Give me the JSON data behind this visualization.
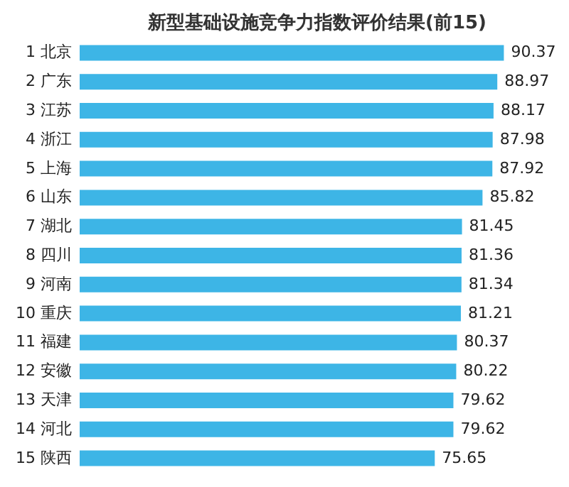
{
  "chart_data": {
    "type": "bar",
    "orientation": "horizontal",
    "title": "新型基础设施竞争力指数评价结果(前15)",
    "categories": [
      "1 北京",
      "2 广东",
      "3 江苏",
      "4 浙江",
      "5 上海",
      "6 山东",
      "7 湖北",
      "8 四川",
      "9 河南",
      "10 重庆",
      "11 福建",
      "12 安徽",
      "13 天津",
      "14 河北",
      "15 陕西"
    ],
    "values": [
      90.37,
      88.97,
      88.17,
      87.98,
      87.92,
      85.82,
      81.45,
      81.36,
      81.34,
      81.21,
      80.37,
      80.22,
      79.62,
      79.62,
      75.65
    ],
    "color": "#3db5e6",
    "data_labels": true,
    "grid": false
  }
}
